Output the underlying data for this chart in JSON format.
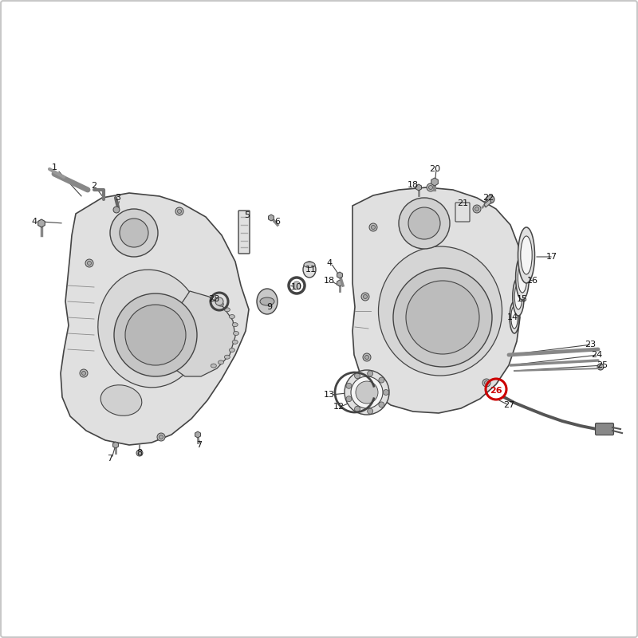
{
  "background_color": "#ffffff",
  "border_color": "#c8c8c8",
  "fig_width": 8.0,
  "fig_height": 8.0,
  "highlight_color": "#cc0000",
  "line_color": "#444444",
  "fill_light": "#e0e0e0",
  "fill_mid": "#c8c8c8",
  "fill_dark": "#b0b0b0",
  "fill_white": "#f5f5f5",
  "text_color": "#111111",
  "left_labels": [
    [
      "1",
      68,
      210
    ],
    [
      "2",
      118,
      233
    ],
    [
      "3",
      148,
      248
    ],
    [
      "4",
      43,
      278
    ],
    [
      "5",
      310,
      270
    ],
    [
      "6",
      348,
      278
    ],
    [
      "7",
      138,
      575
    ],
    [
      "7",
      250,
      558
    ],
    [
      "8",
      175,
      568
    ],
    [
      "9",
      338,
      385
    ],
    [
      "10",
      372,
      360
    ],
    [
      "11",
      390,
      338
    ],
    [
      "28",
      268,
      375
    ]
  ],
  "right_labels": [
    [
      "4",
      413,
      330
    ],
    [
      "12",
      425,
      510
    ],
    [
      "13",
      413,
      495
    ],
    [
      "14",
      643,
      398
    ],
    [
      "15",
      655,
      375
    ],
    [
      "16",
      668,
      352
    ],
    [
      "17",
      692,
      322
    ],
    [
      "18",
      413,
      352
    ],
    [
      "18",
      518,
      232
    ],
    [
      "20",
      545,
      212
    ],
    [
      "21",
      580,
      255
    ],
    [
      "22",
      612,
      248
    ],
    [
      "23",
      740,
      432
    ],
    [
      "24",
      748,
      445
    ],
    [
      "25",
      755,
      458
    ],
    [
      "26",
      622,
      490
    ],
    [
      "27",
      638,
      508
    ]
  ]
}
